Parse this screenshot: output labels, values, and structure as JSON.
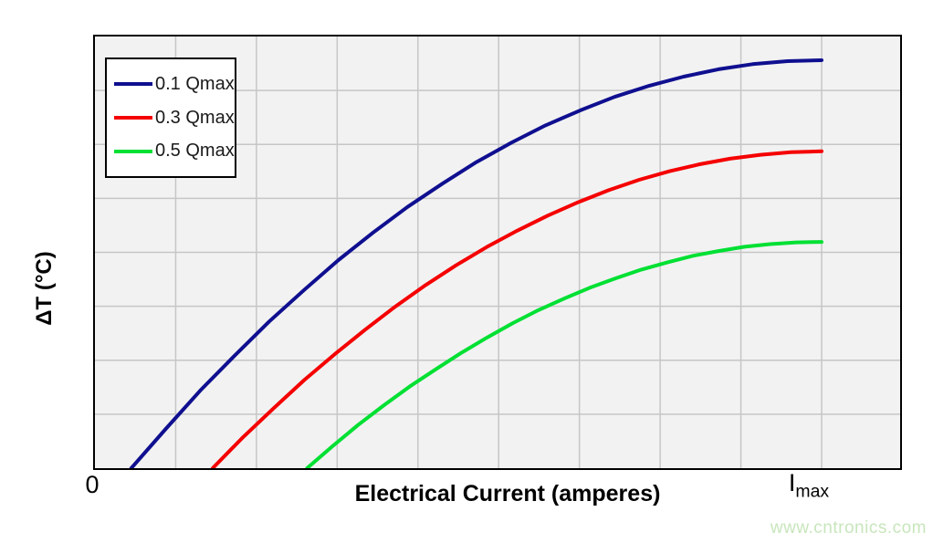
{
  "chart_data": {
    "type": "line",
    "title": "",
    "xlabel": "Electrical Current (amperes)",
    "ylabel": "ΔT (°C)",
    "x_ticks": {
      "zero": "0",
      "imax_main": "I",
      "imax_sub": "max"
    },
    "y_ticks": [],
    "axis_note": "axes are qualitative: x normalized 0..1 of Imax, y normalized 0..1 of plot height",
    "grid": {
      "vertical_lines": 9,
      "horizontal_lines": 7,
      "x_imax_fraction": 0.9025,
      "color": "#c6c6c6",
      "plot_background": "#f2f2f2",
      "border_color": "#000000"
    },
    "legend": {
      "position": "top-left"
    },
    "series": [
      {
        "name": "0.1 Qmax",
        "color": "#0f0f90",
        "x_intercept": 0.05,
        "saturation_value": 0.945,
        "points": [
          [
            0.05,
            0
          ],
          [
            0.098,
            0.092
          ],
          [
            0.145,
            0.18
          ],
          [
            0.193,
            0.262
          ],
          [
            0.24,
            0.34
          ],
          [
            0.288,
            0.413
          ],
          [
            0.335,
            0.482
          ],
          [
            0.383,
            0.546
          ],
          [
            0.43,
            0.605
          ],
          [
            0.478,
            0.659
          ],
          [
            0.525,
            0.709
          ],
          [
            0.573,
            0.754
          ],
          [
            0.62,
            0.794
          ],
          [
            0.668,
            0.829
          ],
          [
            0.715,
            0.86
          ],
          [
            0.763,
            0.886
          ],
          [
            0.81,
            0.907
          ],
          [
            0.858,
            0.924
          ],
          [
            0.905,
            0.936
          ],
          [
            0.953,
            0.943
          ],
          [
            1.0,
            0.945
          ]
        ]
      },
      {
        "name": "0.3 Qmax",
        "color": "#f50000",
        "x_intercept": 0.162,
        "saturation_value": 0.734,
        "points": [
          [
            0.162,
            0
          ],
          [
            0.204,
            0.072
          ],
          [
            0.246,
            0.139
          ],
          [
            0.288,
            0.204
          ],
          [
            0.33,
            0.264
          ],
          [
            0.372,
            0.321
          ],
          [
            0.413,
            0.374
          ],
          [
            0.455,
            0.424
          ],
          [
            0.497,
            0.47
          ],
          [
            0.539,
            0.512
          ],
          [
            0.581,
            0.55
          ],
          [
            0.623,
            0.585
          ],
          [
            0.665,
            0.616
          ],
          [
            0.707,
            0.644
          ],
          [
            0.749,
            0.668
          ],
          [
            0.791,
            0.688
          ],
          [
            0.832,
            0.704
          ],
          [
            0.874,
            0.717
          ],
          [
            0.916,
            0.726
          ],
          [
            0.958,
            0.732
          ],
          [
            1.0,
            0.734
          ]
        ]
      },
      {
        "name": "0.5 Qmax",
        "color": "#00e033",
        "x_intercept": 0.292,
        "saturation_value": 0.524,
        "points": [
          [
            0.292,
            0
          ],
          [
            0.327,
            0.051
          ],
          [
            0.362,
            0.1
          ],
          [
            0.398,
            0.146
          ],
          [
            0.433,
            0.189
          ],
          [
            0.469,
            0.229
          ],
          [
            0.504,
            0.267
          ],
          [
            0.54,
            0.303
          ],
          [
            0.575,
            0.336
          ],
          [
            0.61,
            0.366
          ],
          [
            0.646,
            0.393
          ],
          [
            0.681,
            0.418
          ],
          [
            0.717,
            0.44
          ],
          [
            0.752,
            0.46
          ],
          [
            0.788,
            0.477
          ],
          [
            0.823,
            0.492
          ],
          [
            0.858,
            0.503
          ],
          [
            0.894,
            0.513
          ],
          [
            0.929,
            0.519
          ],
          [
            0.965,
            0.523
          ],
          [
            1.0,
            0.524
          ]
        ]
      }
    ]
  },
  "watermark": "www.cntronics.com"
}
